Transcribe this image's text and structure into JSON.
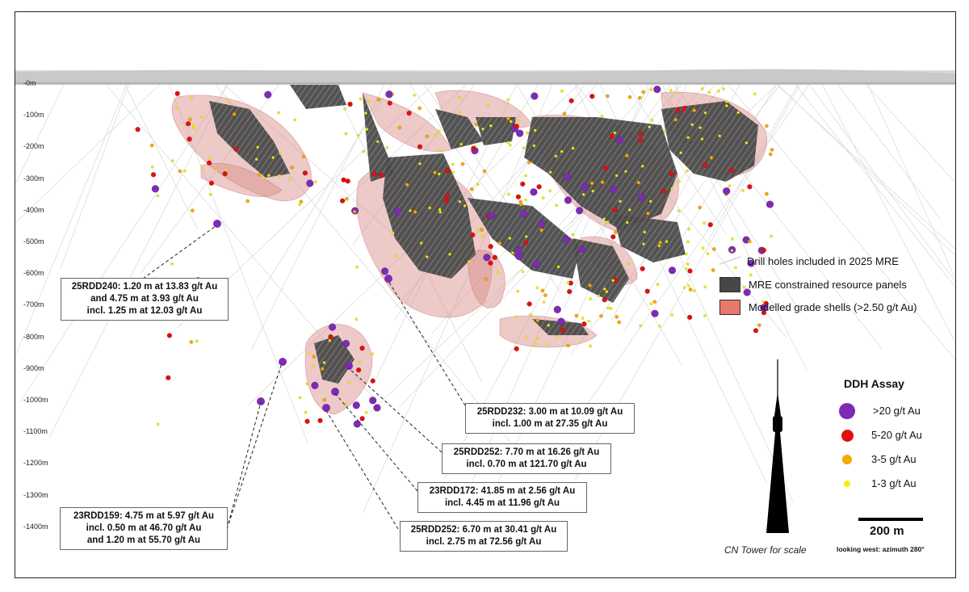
{
  "depth_labels": [
    "-0m",
    "-100m",
    "-200m",
    "-300m",
    "-400m",
    "-500m",
    "-600m",
    "-700m",
    "-800m",
    "-900m",
    "-1000m",
    "-1100m",
    "-1200m",
    "-1300m",
    "-1400m"
  ],
  "legend": {
    "drill_holes": "Drill holes included in 2025 MRE",
    "panels": "MRE constrained resource panels",
    "shells": "Modelled grade shells (>2.50 g/t Au)",
    "panel_color": "#474747",
    "shell_color": "#e8786c"
  },
  "ddh": {
    "title": "DDH Assay",
    "items": [
      {
        "label": ">20 g/t Au",
        "color": "#7d2bb3"
      },
      {
        "label": "5-20 g/t Au",
        "color": "#e01010"
      },
      {
        "label": "3-5 g/t Au",
        "color": "#f2a900"
      },
      {
        "label": "1-3 g/t Au",
        "color": "#f4ef10"
      }
    ]
  },
  "scale": {
    "label": "200 m",
    "view": "looking west: azimuth 280°",
    "tower_caption": "CN Tower for scale"
  },
  "callouts": [
    {
      "id": "25RDD240",
      "lines": [
        "25RDD240: 1.20 m at 13.83 g/t Au",
        "and 4.75 m at 3.93 g/t Au",
        "incl. 1.25 m at 12.03 g/t Au"
      ]
    },
    {
      "id": "25RDD232",
      "lines": [
        "25RDD232: 3.00 m at 10.09 g/t Au",
        "incl. 1.00 m at 27.35 g/t Au"
      ]
    },
    {
      "id": "25RDD252a",
      "lines": [
        "25RDD252: 7.70 m at 16.26 g/t Au",
        "incl. 0.70 m at 121.70 g/t Au"
      ]
    },
    {
      "id": "23RDD172",
      "lines": [
        "23RDD172: 41.85 m at 2.56 g/t Au",
        "incl. 4.45 m at 11.96 g/t Au"
      ]
    },
    {
      "id": "23RDD159",
      "lines": [
        "23RDD159: 4.75 m at 5.97 g/t Au",
        "incl. 0.50 m at 46.70 g/t Au",
        "and 1.20 m at 55.70 g/t Au"
      ]
    },
    {
      "id": "25RDD252b",
      "lines": [
        "25RDD252: 6.70 m at 30.41 g/t Au",
        "incl. 2.75 m at 72.56 g/t Au"
      ]
    }
  ]
}
